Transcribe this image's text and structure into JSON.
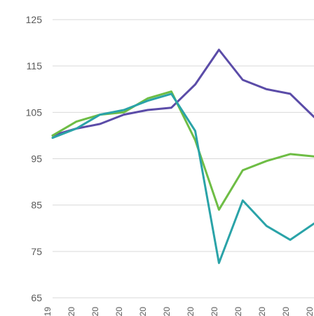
{
  "chart_data": {
    "type": "line",
    "title": "",
    "xlabel": "",
    "ylabel": "",
    "ylim": [
      65,
      125
    ],
    "yticks": [
      65,
      75,
      85,
      95,
      105,
      115,
      125
    ],
    "ytick_labels": [
      "65",
      "75",
      "85",
      "95",
      "105",
      "115",
      "125"
    ],
    "xtick_labels": [
      "19",
      "20",
      "20",
      "20",
      "20",
      "20",
      "20",
      "20",
      "20",
      "20",
      "20",
      "20"
    ],
    "grid": true,
    "legend": "none",
    "x": [
      0,
      1,
      2,
      3,
      4,
      5,
      6,
      7,
      8,
      9,
      10,
      11
    ],
    "series": [
      {
        "color": "#5b4ca8",
        "values": [
          100,
          101.5,
          102.5,
          104.5,
          105.5,
          106,
          111,
          118.5,
          112,
          110,
          109,
          104
        ]
      },
      {
        "color": "#6ebd45",
        "values": [
          100,
          103,
          104.5,
          105,
          108,
          109.5,
          99,
          84,
          92.5,
          94.5,
          96,
          95.5
        ]
      },
      {
        "color": "#2aa3a8",
        "values": [
          99.5,
          101.5,
          104.5,
          105.5,
          107.5,
          109,
          101,
          72.5,
          86,
          80.5,
          77.5,
          81
        ]
      }
    ]
  }
}
